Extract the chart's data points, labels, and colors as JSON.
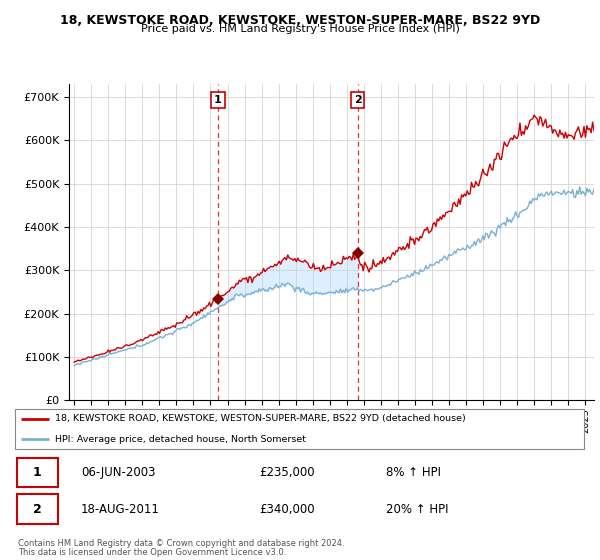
{
  "title1": "18, KEWSTOKE ROAD, KEWSTOKE, WESTON-SUPER-MARE, BS22 9YD",
  "title2": "Price paid vs. HM Land Registry's House Price Index (HPI)",
  "ylabel_ticks": [
    "£0",
    "£100K",
    "£200K",
    "£300K",
    "£400K",
    "£500K",
    "£600K",
    "£700K"
  ],
  "ytick_vals": [
    0,
    100000,
    200000,
    300000,
    400000,
    500000,
    600000,
    700000
  ],
  "ylim": [
    0,
    730000
  ],
  "xlim_start": 1994.7,
  "xlim_end": 2025.5,
  "legend_line1": "18, KEWSTOKE ROAD, KEWSTOKE, WESTON-SUPER-MARE, BS22 9YD (detached house)",
  "legend_line2": "HPI: Average price, detached house, North Somerset",
  "sale1_date": "06-JUN-2003",
  "sale1_price": "£235,000",
  "sale1_hpi": "8% ↑ HPI",
  "sale2_date": "18-AUG-2011",
  "sale2_price": "£340,000",
  "sale2_hpi": "20% ↑ HPI",
  "footnote1": "Contains HM Land Registry data © Crown copyright and database right 2024.",
  "footnote2": "This data is licensed under the Open Government Licence v3.0.",
  "line_color_red": "#cc0000",
  "line_color_blue": "#7ab0d4",
  "shading_color": "#ddeeff",
  "sale1_x": 2003.44,
  "sale1_y": 235000,
  "sale2_x": 2011.63,
  "sale2_y": 340000
}
